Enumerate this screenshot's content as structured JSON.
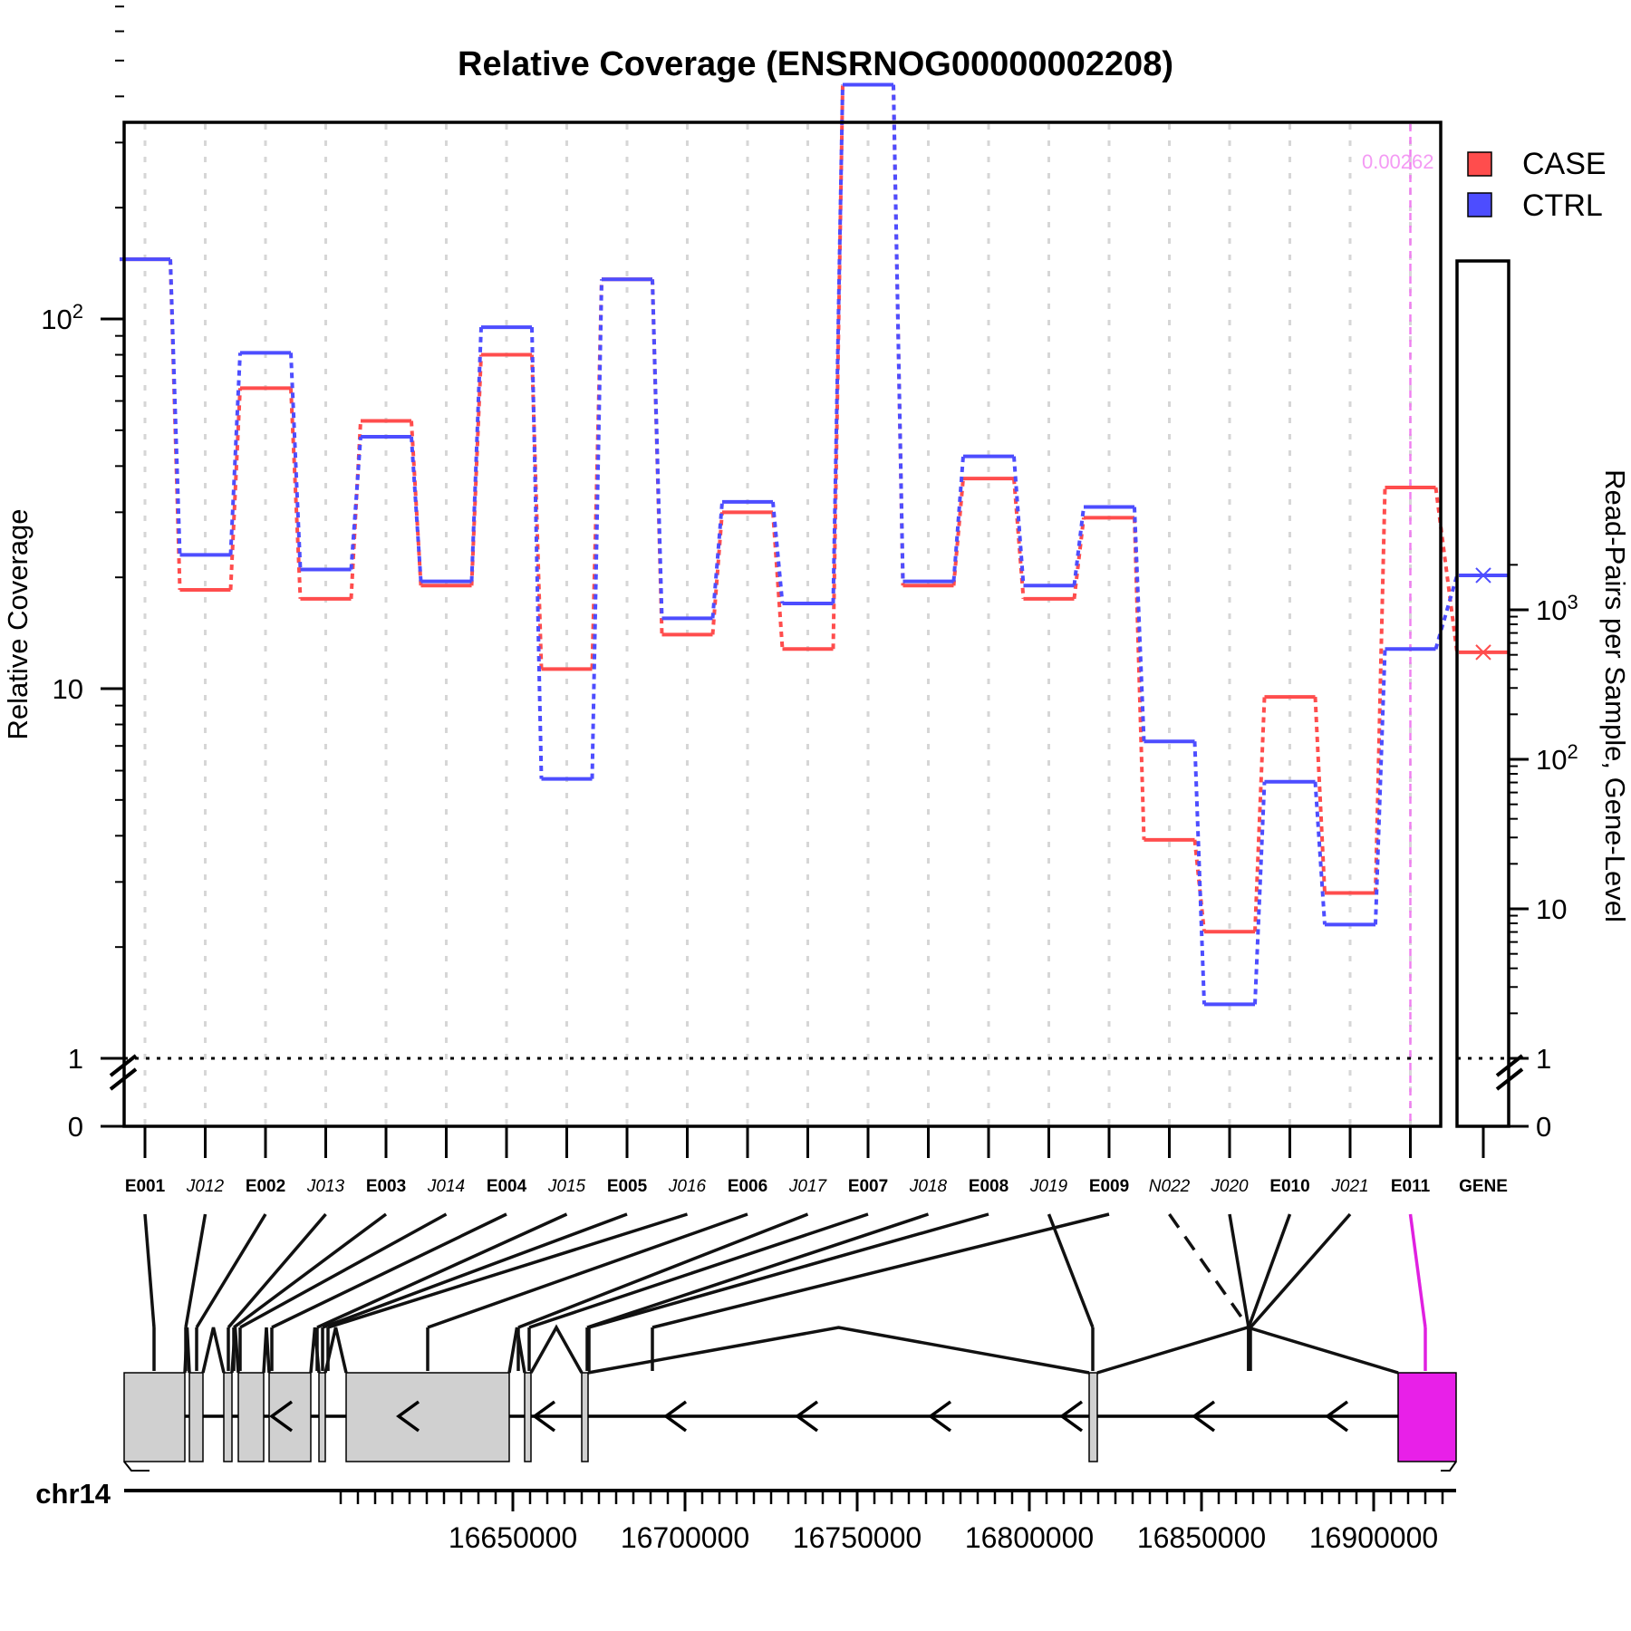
{
  "chart_data": {
    "type": "line",
    "title": "Relative Coverage (ENSRNOG00000002208)",
    "ylabel": "Relative Coverage",
    "y2label": "Read-Pairs per Sample, Gene-Level",
    "yscale": "log",
    "y_ticks": [
      "0",
      "1",
      "10",
      "10^2"
    ],
    "y2_ticks": [
      "0",
      "1",
      "10",
      "10^2",
      "10^3"
    ],
    "highlight_label": "0.00262",
    "highlight_feature": "E011",
    "chromosome": "chr14",
    "genome_ticks": [
      "16650000",
      "16700000",
      "16750000",
      "16800000",
      "16850000",
      "16900000"
    ],
    "features": [
      {
        "id": "E001",
        "kind": "exon"
      },
      {
        "id": "J012",
        "kind": "junction"
      },
      {
        "id": "E002",
        "kind": "exon"
      },
      {
        "id": "J013",
        "kind": "junction"
      },
      {
        "id": "E003",
        "kind": "exon"
      },
      {
        "id": "J014",
        "kind": "junction"
      },
      {
        "id": "E004",
        "kind": "exon"
      },
      {
        "id": "J015",
        "kind": "junction"
      },
      {
        "id": "E005",
        "kind": "exon"
      },
      {
        "id": "J016",
        "kind": "junction"
      },
      {
        "id": "E006",
        "kind": "exon"
      },
      {
        "id": "J017",
        "kind": "junction"
      },
      {
        "id": "E007",
        "kind": "exon"
      },
      {
        "id": "J018",
        "kind": "junction"
      },
      {
        "id": "E008",
        "kind": "exon"
      },
      {
        "id": "J019",
        "kind": "junction"
      },
      {
        "id": "E009",
        "kind": "exon"
      },
      {
        "id": "N022",
        "kind": "novel"
      },
      {
        "id": "J020",
        "kind": "junction"
      },
      {
        "id": "E010",
        "kind": "exon"
      },
      {
        "id": "J021",
        "kind": "junction"
      },
      {
        "id": "E011",
        "kind": "exon"
      }
    ],
    "gene_label": "GENE",
    "series": [
      {
        "name": "CASE",
        "color": "#ff4d4d",
        "values": [
          145,
          18.5,
          65,
          17.5,
          53,
          19,
          80,
          11.3,
          128,
          14,
          30,
          12.8,
          430,
          19,
          37,
          17.5,
          29,
          3.9,
          2.2,
          9.5,
          2.8,
          35
        ],
        "gene_value": 520
      },
      {
        "name": "CTRL",
        "color": "#4d4dff",
        "values": [
          145,
          23,
          81,
          21,
          48,
          19.5,
          95,
          5.7,
          128,
          15.5,
          32,
          17,
          430,
          19.5,
          42.5,
          19,
          31,
          7.2,
          1.4,
          5.6,
          2.3,
          12.8
        ],
        "gene_value": 1700
      }
    ]
  }
}
